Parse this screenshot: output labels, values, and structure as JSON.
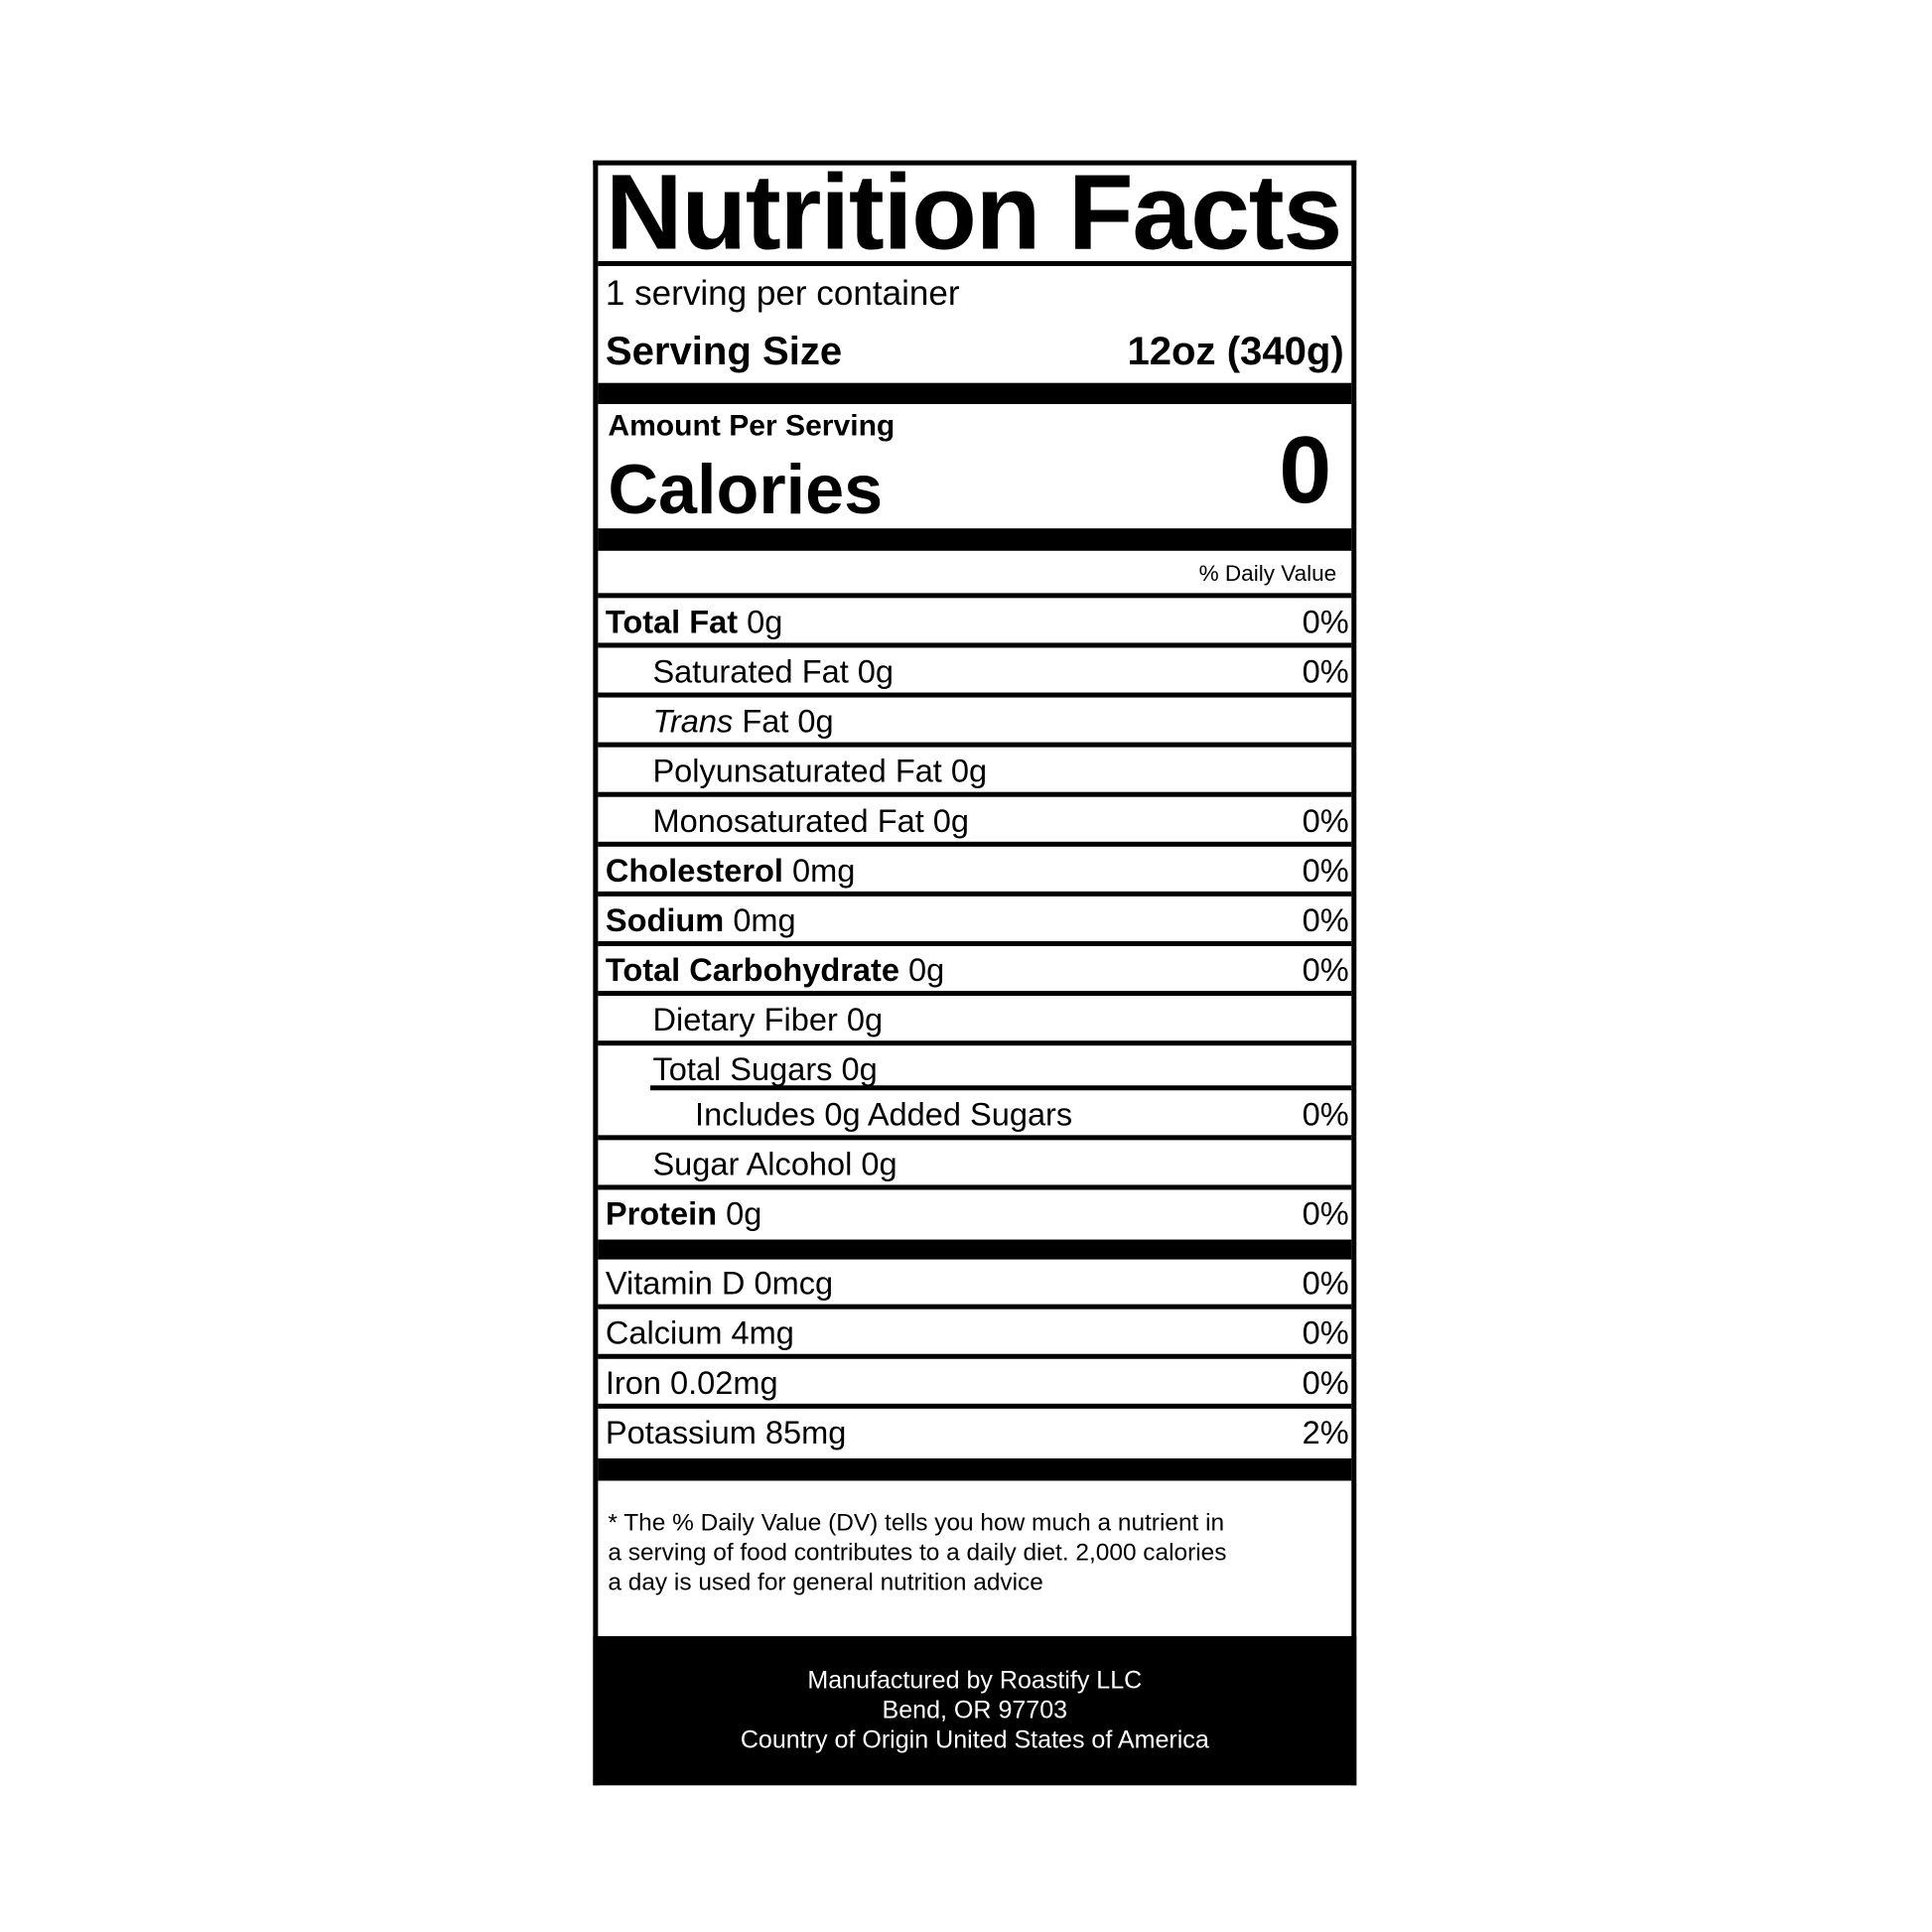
{
  "title": "Nutrition Facts",
  "servings_per_container": "1 serving per container",
  "serving_size_label": "Serving Size",
  "serving_size_value": "12oz (340g)",
  "amount_per_serving": "Amount Per Serving",
  "calories_label": "Calories",
  "calories_value": "0",
  "daily_value_header": "% Daily Value",
  "nutrients": [
    {
      "name": "Total Fat",
      "amount": "0g",
      "dv": "0%",
      "bold": true,
      "indent": 0
    },
    {
      "name": "Saturated Fat 0g",
      "amount": "",
      "dv": "0%",
      "indent": 1
    },
    {
      "name_italic": "Trans",
      "name": " Fat 0g",
      "amount": "",
      "dv": "",
      "indent": 1
    },
    {
      "name": "Polyunsaturated Fat 0g",
      "amount": "",
      "dv": "",
      "indent": 1
    },
    {
      "name": "Monosaturated Fat 0g",
      "amount": "",
      "dv": "0%",
      "indent": 1
    },
    {
      "name": "Cholesterol",
      "amount": "0mg",
      "dv": "0%",
      "bold": true,
      "indent": 0
    },
    {
      "name": "Sodium",
      "amount": "0mg",
      "dv": "0%",
      "bold": true,
      "indent": 0
    },
    {
      "name": "Total Carbohydrate",
      "amount": "0g",
      "dv": "0%",
      "bold": true,
      "indent": 0
    },
    {
      "name": "Dietary Fiber 0g",
      "amount": "",
      "dv": "",
      "indent": 1
    },
    {
      "name": "Total Sugars 0g",
      "amount": "",
      "dv": "",
      "indent": 1
    },
    {
      "name": "Includes 0g Added Sugars",
      "amount": "",
      "dv": "0%",
      "indent": 2
    },
    {
      "name": "Sugar Alcohol 0g",
      "amount": "",
      "dv": "",
      "indent": 1
    },
    {
      "name": "Protein",
      "amount": "0g",
      "dv": "0%",
      "bold": true,
      "indent": 0
    }
  ],
  "vitamins": [
    {
      "name": "Vitamin D 0mcg",
      "dv": "0%"
    },
    {
      "name": "Calcium 4mg",
      "dv": "0%"
    },
    {
      "name": "Iron 0.02mg",
      "dv": "0%"
    },
    {
      "name": "Potassium 85mg",
      "dv": "2%"
    }
  ],
  "footnote": [
    "* The % Daily Value (DV) tells you how much a nutrient in",
    "a serving of food contributes to a daily diet. 2,000 calories",
    "a day is used for general nutrition advice"
  ],
  "manufacturer": [
    "Manufactured by Roastify LLC",
    "Bend, OR 97703",
    "Country of Origin United States of America"
  ]
}
